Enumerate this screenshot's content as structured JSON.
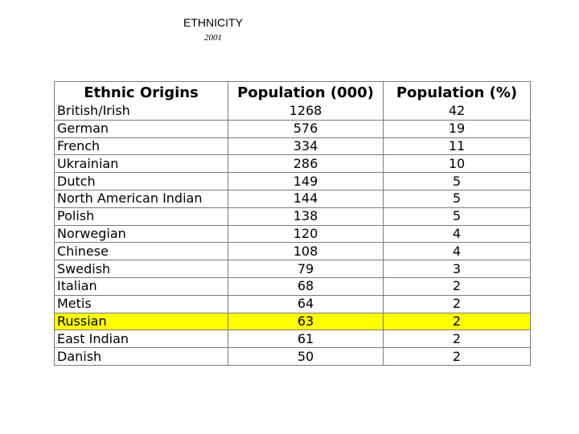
{
  "title": "ETHNICITY",
  "subtitle": "2001",
  "table": {
    "headers": [
      "Ethnic Origins",
      "Population (000)",
      "Population (%)"
    ],
    "highlight_color": "#ffff00",
    "rows": [
      {
        "origin": "British/Irish",
        "population_thousands": "1268",
        "population_percent": "42",
        "highlighted": false
      },
      {
        "origin": "German",
        "population_thousands": "576",
        "population_percent": "19",
        "highlighted": false
      },
      {
        "origin": "French",
        "population_thousands": "334",
        "population_percent": "11",
        "highlighted": false
      },
      {
        "origin": "Ukrainian",
        "population_thousands": "286",
        "population_percent": "10",
        "highlighted": false
      },
      {
        "origin": "Dutch",
        "population_thousands": "149",
        "population_percent": "5",
        "highlighted": false
      },
      {
        "origin": "North American Indian",
        "population_thousands": "144",
        "population_percent": "5",
        "highlighted": false
      },
      {
        "origin": "Polish",
        "population_thousands": "138",
        "population_percent": "5",
        "highlighted": false
      },
      {
        "origin": "Norwegian",
        "population_thousands": "120",
        "population_percent": "4",
        "highlighted": false
      },
      {
        "origin": "Chinese",
        "population_thousands": "108",
        "population_percent": "4",
        "highlighted": false
      },
      {
        "origin": "Swedish",
        "population_thousands": "79",
        "population_percent": "3",
        "highlighted": false
      },
      {
        "origin": "Italian",
        "population_thousands": "68",
        "population_percent": "2",
        "highlighted": false
      },
      {
        "origin": "Metis",
        "population_thousands": "64",
        "population_percent": "2",
        "highlighted": false
      },
      {
        "origin": "Russian",
        "population_thousands": "63",
        "population_percent": "2",
        "highlighted": true
      },
      {
        "origin": "East Indian",
        "population_thousands": "61",
        "population_percent": "2",
        "highlighted": false
      },
      {
        "origin": "Danish",
        "population_thousands": "50",
        "population_percent": "2",
        "highlighted": false
      }
    ]
  }
}
